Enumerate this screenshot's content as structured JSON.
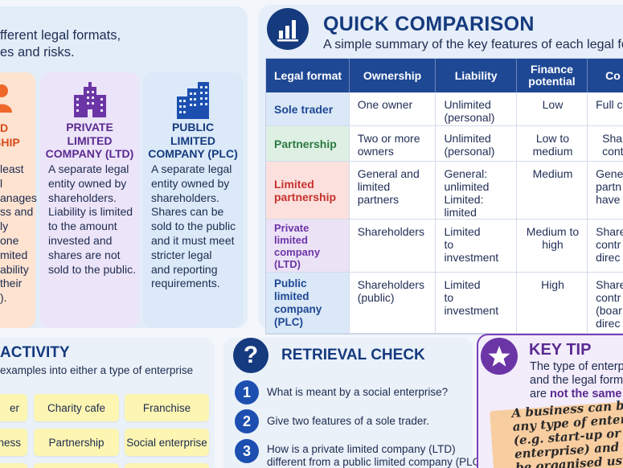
{
  "intro": {
    "line1": "fferent legal formats,",
    "line2": "es and risks."
  },
  "cards": {
    "ltd_partnership": {
      "title_l1": "D",
      "title_l2": "SHIP",
      "body": [
        "least",
        "l",
        "anages",
        "ss and",
        "ly",
        "one",
        "mited",
        "ability",
        "their",
        ")."
      ]
    },
    "private_limited": {
      "title_l1": "PRIVATE",
      "title_l2": "LIMITED",
      "title_l3": "COMPANY (LTD)",
      "body": [
        "A separate legal",
        "entity owned by",
        "shareholders.",
        "Liability is limited",
        "to the amount",
        "invested and",
        "shares are not",
        "sold to the public."
      ]
    },
    "public_limited": {
      "title_l1": "PUBLIC",
      "title_l2": "LIMITED",
      "title_l3": "COMPANY (PLC)",
      "body": [
        "A separate legal",
        "entity owned by",
        "shareholders.",
        "Shares can be",
        "sold to the public",
        "and it must meet",
        "stricter legal",
        "and reporting",
        "requirements."
      ]
    }
  },
  "comparison": {
    "title": "QUICK COMPARISON",
    "subtitle": "A simple summary of the key features of each legal fo",
    "headers": [
      "Legal format",
      "Ownership",
      "Liability",
      "Finance potential",
      "Co"
    ],
    "header_finance_l1": "Finance",
    "header_finance_l2": "potential",
    "rows": [
      {
        "format": [
          "Sole trader"
        ],
        "ownership": [
          "One owner"
        ],
        "liability": [
          "Unlimited",
          "(personal)"
        ],
        "finance": [
          "Low"
        ],
        "control": [
          "Full c"
        ]
      },
      {
        "format": [
          "Partnership"
        ],
        "ownership": [
          "Two or more",
          "owners"
        ],
        "liability": [
          "Unlimited",
          "(personal)"
        ],
        "finance": [
          "Low to",
          "medium"
        ],
        "control": [
          "Shar",
          "cont"
        ]
      },
      {
        "format": [
          "Limited",
          "partnership"
        ],
        "ownership": [
          "General and",
          "limited partners"
        ],
        "liability": [
          "General:",
          "unlimited",
          "Limited: limited"
        ],
        "finance": [
          "Medium"
        ],
        "control": [
          "Gene",
          "partn",
          "have"
        ]
      },
      {
        "format": [
          "Private",
          "limited company",
          "(LTD)"
        ],
        "ownership": [
          "Shareholders"
        ],
        "liability": [
          "Limited",
          "to investment"
        ],
        "finance": [
          "Medium to",
          "high"
        ],
        "control": [
          "Share",
          "contr",
          "direc"
        ]
      },
      {
        "format": [
          "Public limited",
          "company (PLC)"
        ],
        "ownership": [
          "Shareholders",
          "(public)"
        ],
        "liability": [
          "Limited",
          "to investment"
        ],
        "finance": [
          "High"
        ],
        "control": [
          "Share",
          "contr",
          "(boar",
          "direc"
        ]
      }
    ]
  },
  "activity": {
    "title": "ACTIVITY",
    "subtitle": "examples into either a type of enterprise",
    "cards": [
      "er",
      "Charity cafe",
      "Franchise",
      "siness",
      "Partnership",
      "Social enterprise"
    ]
  },
  "retrieval": {
    "title": "RETRIEVAL CHECK",
    "icon": "?",
    "questions": [
      {
        "num": "1",
        "text": [
          "What is meant by a social enterprise?"
        ]
      },
      {
        "num": "2",
        "text": [
          "Give two features of a sole trader."
        ]
      },
      {
        "num": "3",
        "text": [
          "How is a private limited company (LTD)",
          "different from a public limited company (PLC)?"
        ]
      }
    ]
  },
  "key_tip": {
    "title": "KEY TIP",
    "line1": "The type of enterp",
    "line2": "and the legal form",
    "line3_pre": "are ",
    "line3_bold": "not the same",
    "note": [
      "A business can be",
      "any type of enterpr",
      "(e.g. start-up or soci",
      "enterprise) and ca",
      "be organised usin"
    ]
  },
  "colors": {
    "navy": "#153a7e",
    "header_blue": "#1f4894",
    "purple": "#6b35a6",
    "orange": "#f0672a"
  }
}
